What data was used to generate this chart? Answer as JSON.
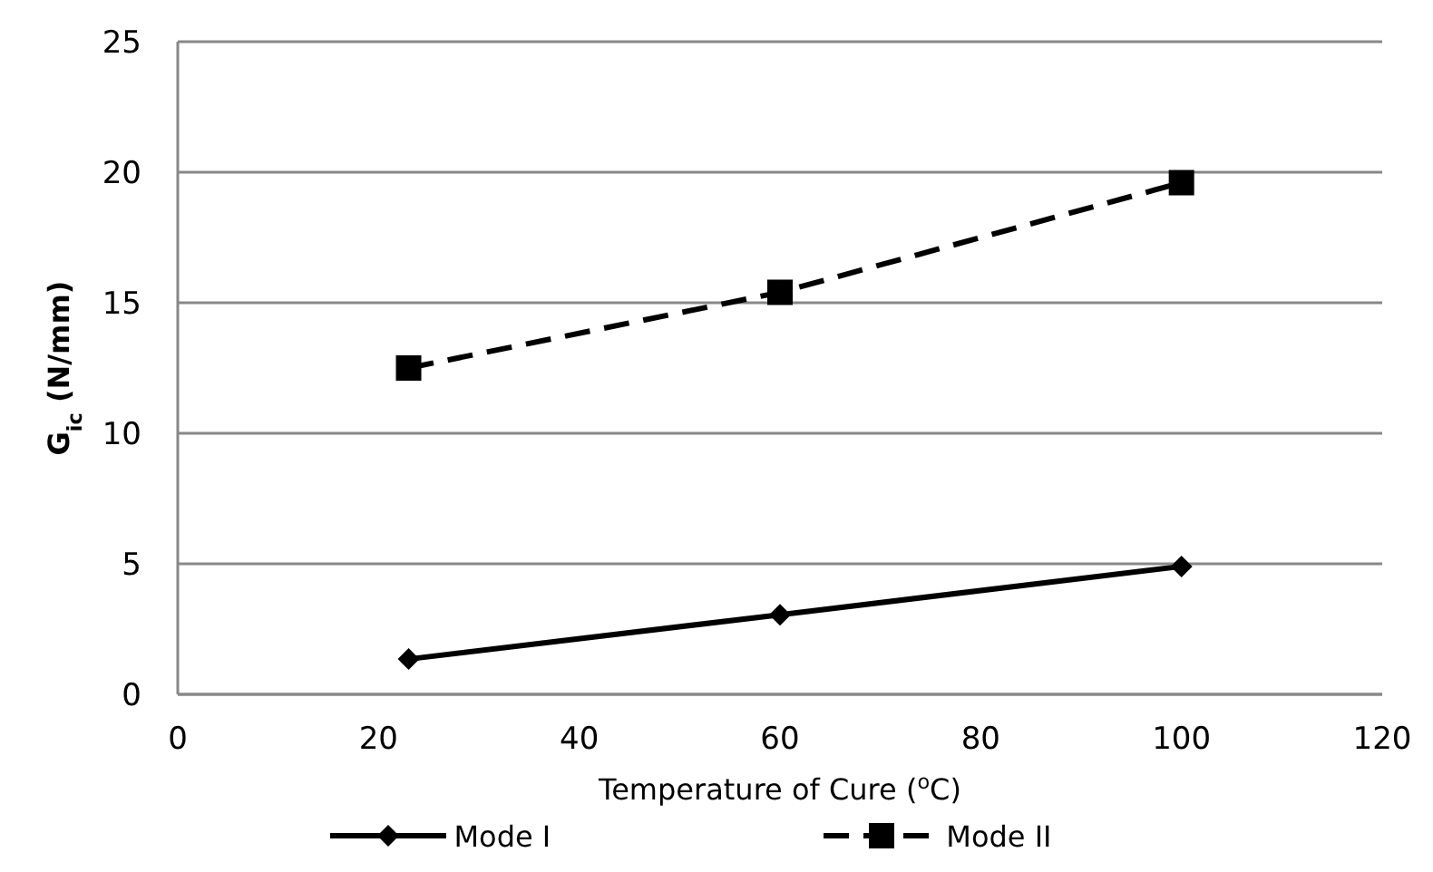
{
  "chart_data": {
    "type": "line",
    "xlabel": "Temperature of Cure ($^{o}$C)",
    "ylabel": "G$_{ic}$ (N/mm)",
    "x": [
      23,
      60,
      100
    ],
    "series": [
      {
        "name": "Mode I",
        "color": "#000000",
        "values": [
          1.35,
          3.05,
          4.9
        ],
        "marker": "diamond",
        "line_style": "solid"
      },
      {
        "name": "Mode II",
        "color": "#000000",
        "values": [
          12.5,
          15.4,
          19.6
        ],
        "marker": "square",
        "line_style": "dashed"
      }
    ],
    "xlim": [
      0,
      120
    ],
    "xticks": [
      0,
      20,
      40,
      60,
      80,
      100,
      120
    ],
    "ylim": [
      0,
      25
    ],
    "yticks": [
      0,
      5,
      10,
      15,
      20,
      25
    ],
    "grid": "y",
    "legend": "bottom"
  }
}
